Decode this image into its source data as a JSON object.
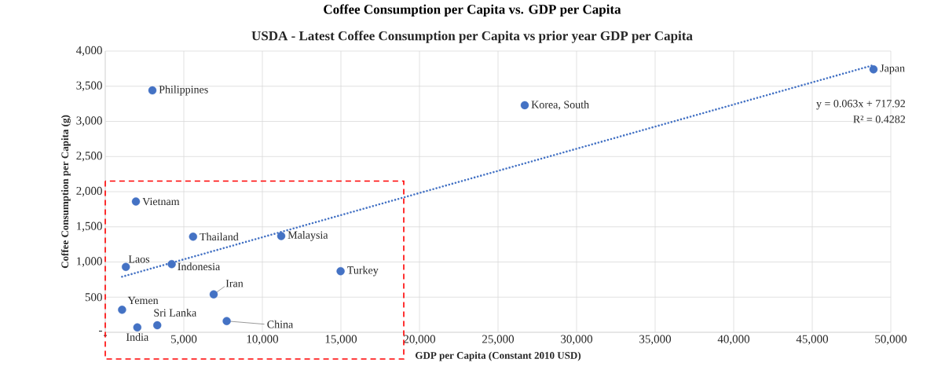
{
  "chart_data": {
    "type": "scatter",
    "title": "Coffee Consumption per Capita vs. GDP per Capita",
    "subtitle": "USDA - Latest Coffee Consumption per Capita vs prior year GDP per Capita",
    "xlabel": "GDP per Capita (Constant 2010 USD)",
    "ylabel": "Coffee Consumption per Capita (g)",
    "xlim": [
      0,
      50000
    ],
    "ylim": [
      0,
      4000
    ],
    "xticks": [
      {
        "value": 0,
        "label": "-"
      },
      {
        "value": 5000,
        "label": "5,000"
      },
      {
        "value": 10000,
        "label": "10,000"
      },
      {
        "value": 15000,
        "label": "15,000"
      },
      {
        "value": 20000,
        "label": "20,000"
      },
      {
        "value": 25000,
        "label": "25,000"
      },
      {
        "value": 30000,
        "label": "30,000"
      },
      {
        "value": 35000,
        "label": "35,000"
      },
      {
        "value": 40000,
        "label": "40,000"
      },
      {
        "value": 45000,
        "label": "45,000"
      },
      {
        "value": 50000,
        "label": "50,000"
      }
    ],
    "yticks": [
      {
        "value": 0,
        "label": "-"
      },
      {
        "value": 500,
        "label": "500"
      },
      {
        "value": 1000,
        "label": "1,000"
      },
      {
        "value": 1500,
        "label": "1,500"
      },
      {
        "value": 2000,
        "label": "2,000"
      },
      {
        "value": 2500,
        "label": "2,500"
      },
      {
        "value": 3000,
        "label": "3,000"
      },
      {
        "value": 3500,
        "label": "3,500"
      },
      {
        "value": 4000,
        "label": "4,000"
      }
    ],
    "grid": true,
    "series": [
      {
        "marker": "circle",
        "color": "#4472c4",
        "x": [
          3000,
          1950,
          5590,
          11200,
          1310,
          4230,
          14980,
          6900,
          1070,
          3310,
          2040,
          7730,
          26700,
          48900
        ],
        "values": [
          3440,
          1860,
          1360,
          1370,
          930,
          970,
          870,
          540,
          320,
          100,
          70,
          160,
          3230,
          3740
        ]
      },
      {
        "type": "line",
        "line_style": "dotted",
        "marker": "none",
        "color": "#4472c4",
        "x": [
          1070,
          48900
        ],
        "values": [
          790,
          3800
        ]
      }
    ],
    "annotations": [
      {
        "text": "Philippines",
        "x": 3000,
        "y": 3440
      },
      {
        "text": "Vietnam",
        "x": 1950,
        "y": 1860
      },
      {
        "text": "Thailand",
        "x": 5590,
        "y": 1360
      },
      {
        "text": "Malaysia",
        "x": 11200,
        "y": 1370
      },
      {
        "text": "Laos",
        "x": 1310,
        "y": 930
      },
      {
        "text": "Indonesia",
        "x": 4230,
        "y": 970
      },
      {
        "text": "Turkey",
        "x": 14980,
        "y": 870
      },
      {
        "text": "Iran",
        "x": 6900,
        "y": 540
      },
      {
        "text": "Yemen",
        "x": 1070,
        "y": 320
      },
      {
        "text": "Sri Lanka",
        "x": 3310,
        "y": 100
      },
      {
        "text": "India",
        "x": 2040,
        "y": 70
      },
      {
        "text": "China",
        "x": 7730,
        "y": 160
      },
      {
        "text": "Korea, South",
        "x": 26700,
        "y": 3230
      },
      {
        "text": "Japan",
        "x": 48900,
        "y": 3740
      },
      "y = 0.063x + 717.92",
      "R² = 0.4282"
    ]
  }
}
